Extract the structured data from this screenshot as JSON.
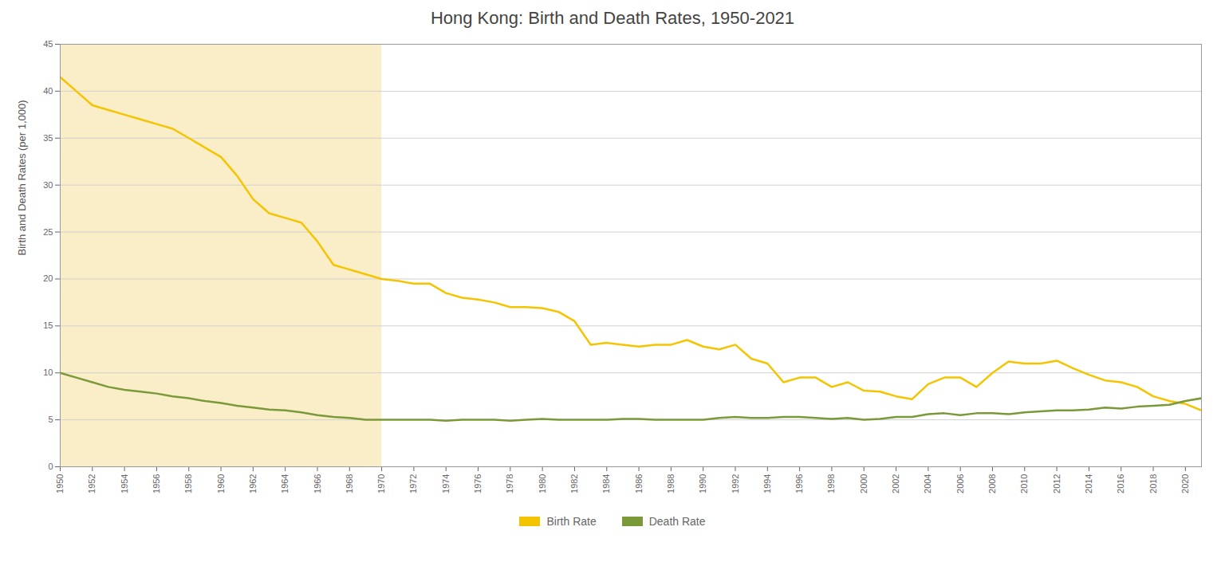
{
  "chart_data": {
    "type": "line",
    "title": "Hong Kong: Birth and Death Rates, 1950-2021",
    "ylabel": "Birth and Death Rates (per 1,000)",
    "x": [
      1950,
      1951,
      1952,
      1953,
      1954,
      1955,
      1956,
      1957,
      1958,
      1959,
      1960,
      1961,
      1962,
      1963,
      1964,
      1965,
      1966,
      1967,
      1968,
      1969,
      1970,
      1971,
      1972,
      1973,
      1974,
      1975,
      1976,
      1977,
      1978,
      1979,
      1980,
      1981,
      1982,
      1983,
      1984,
      1985,
      1986,
      1987,
      1988,
      1989,
      1990,
      1991,
      1992,
      1993,
      1994,
      1995,
      1996,
      1997,
      1998,
      1999,
      2000,
      2001,
      2002,
      2003,
      2004,
      2005,
      2006,
      2007,
      2008,
      2009,
      2010,
      2011,
      2012,
      2013,
      2014,
      2015,
      2016,
      2017,
      2018,
      2019,
      2020,
      2021
    ],
    "series": [
      {
        "name": "Birth Rate",
        "color": "#f5c400",
        "values": [
          41.5,
          40.0,
          38.5,
          38.0,
          37.5,
          37.0,
          36.5,
          36.0,
          35.0,
          34.0,
          33.0,
          31.0,
          28.5,
          27.0,
          26.5,
          26.0,
          24.0,
          21.5,
          21.0,
          20.5,
          20.0,
          19.8,
          19.5,
          19.5,
          18.5,
          18.0,
          17.8,
          17.5,
          17.0,
          17.0,
          16.9,
          16.5,
          15.5,
          13.0,
          13.2,
          13.0,
          12.8,
          13.0,
          13.0,
          13.5,
          12.8,
          12.5,
          13.0,
          11.5,
          11.0,
          9.0,
          9.5,
          9.5,
          8.5,
          9.0,
          8.1,
          8.0,
          7.5,
          7.2,
          8.8,
          9.5,
          9.5,
          8.5,
          10.0,
          11.2,
          11.0,
          11.0,
          11.3,
          10.5,
          9.8,
          9.2,
          9.0,
          8.5,
          7.5,
          7.0,
          6.7,
          6.0
        ]
      },
      {
        "name": "Death Rate",
        "color": "#7a9a3a",
        "values": [
          10.0,
          9.5,
          9.0,
          8.5,
          8.2,
          8.0,
          7.8,
          7.5,
          7.3,
          7.0,
          6.8,
          6.5,
          6.3,
          6.1,
          6.0,
          5.8,
          5.5,
          5.3,
          5.2,
          5.0,
          5.0,
          5.0,
          5.0,
          5.0,
          4.9,
          5.0,
          5.0,
          5.0,
          4.9,
          5.0,
          5.1,
          5.0,
          5.0,
          5.0,
          5.0,
          5.1,
          5.1,
          5.0,
          5.0,
          5.0,
          5.0,
          5.2,
          5.3,
          5.2,
          5.2,
          5.3,
          5.3,
          5.2,
          5.1,
          5.2,
          5.0,
          5.1,
          5.3,
          5.3,
          5.6,
          5.7,
          5.5,
          5.7,
          5.7,
          5.6,
          5.8,
          5.9,
          6.0,
          6.0,
          6.1,
          6.3,
          6.2,
          6.4,
          6.5,
          6.6,
          7.0,
          7.3
        ]
      }
    ],
    "shaded_region": [
      1950,
      1970
    ],
    "shaded_color": "#faeec8",
    "xlim": [
      1950,
      2021
    ],
    "xticks": [
      1950,
      1952,
      1954,
      1956,
      1958,
      1960,
      1962,
      1964,
      1966,
      1968,
      1970,
      1972,
      1974,
      1976,
      1978,
      1980,
      1982,
      1984,
      1986,
      1988,
      1990,
      1992,
      1994,
      1996,
      1998,
      2000,
      2002,
      2004,
      2006,
      2008,
      2010,
      2012,
      2014,
      2016,
      2018,
      2020
    ],
    "ylim": [
      0,
      45
    ],
    "yticks": [
      0,
      5,
      10,
      15,
      20,
      25,
      30,
      35,
      40,
      45
    ],
    "grid": true,
    "legend": "bottom"
  }
}
